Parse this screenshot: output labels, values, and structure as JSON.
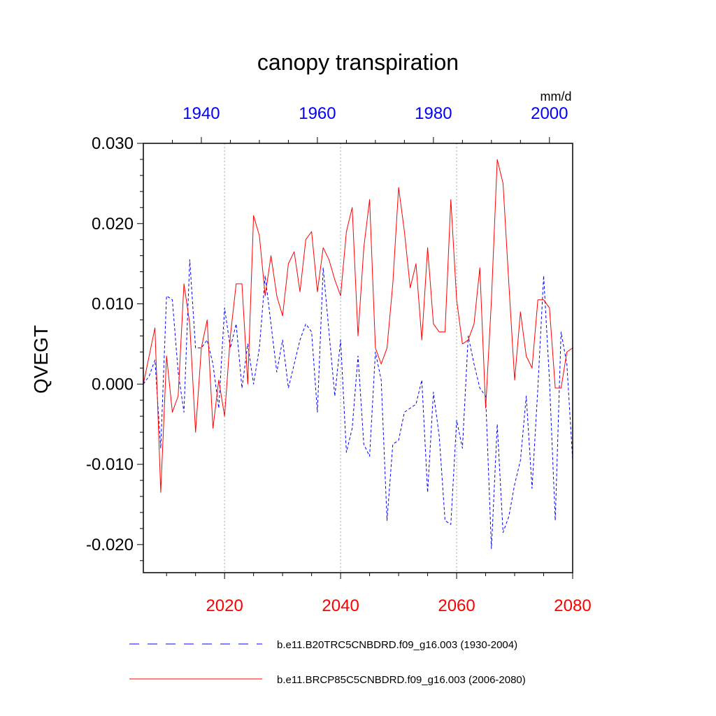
{
  "chart_data": {
    "type": "line",
    "title": "canopy transpiration",
    "ylabel": "QVEGT",
    "units": "mm/d",
    "ylim": [
      -0.0235,
      0.03
    ],
    "y_ticks": [
      "-0.020",
      "-0.010",
      "0.000",
      "0.010",
      "0.020",
      "0.030"
    ],
    "bottom_axis": {
      "range": [
        2006,
        2080
      ],
      "ticks": [
        "2020",
        "2040",
        "2060",
        "2080"
      ],
      "color": "#ff0000"
    },
    "top_axis": {
      "range": [
        1930,
        2004
      ],
      "ticks": [
        "1940",
        "1960",
        "1980",
        "2000"
      ],
      "color": "#0000ff"
    },
    "grid": "dotted vertical lines at major bottom-axis ticks",
    "legend_position": "bottom",
    "series": [
      {
        "name": "b.e11.B20TRC5CNBDRD.f09_g16.003 (1930-2004)",
        "axis": "top",
        "color": "#0000ff",
        "dash": "dashed",
        "x": [
          1930,
          1931,
          1932,
          1933,
          1934,
          1935,
          1936,
          1937,
          1938,
          1939,
          1940,
          1941,
          1942,
          1943,
          1944,
          1945,
          1946,
          1947,
          1948,
          1949,
          1950,
          1951,
          1952,
          1953,
          1954,
          1955,
          1956,
          1957,
          1958,
          1959,
          1960,
          1961,
          1962,
          1963,
          1964,
          1965,
          1966,
          1967,
          1968,
          1969,
          1970,
          1971,
          1972,
          1973,
          1974,
          1975,
          1976,
          1977,
          1978,
          1979,
          1980,
          1981,
          1982,
          1983,
          1984,
          1985,
          1986,
          1987,
          1988,
          1989,
          1990,
          1991,
          1992,
          1993,
          1994,
          1995,
          1996,
          1997,
          1998,
          1999,
          2000,
          2001,
          2002,
          2003,
          2004
        ],
        "values": [
          0.0,
          0.001,
          0.003,
          -0.008,
          0.011,
          0.0105,
          0.0015,
          -0.0035,
          0.0155,
          0.0045,
          0.0045,
          0.0055,
          0.0025,
          -0.003,
          0.0095,
          0.0045,
          0.0075,
          -0.0005,
          0.005,
          0.0,
          0.0045,
          0.0135,
          0.0075,
          0.0015,
          0.0055,
          -0.0005,
          0.0025,
          0.0055,
          0.0075,
          0.0065,
          -0.0035,
          0.0145,
          0.0065,
          -0.0015,
          0.0055,
          -0.0085,
          -0.0055,
          0.0035,
          -0.0075,
          -0.009,
          0.004,
          0.0005,
          -0.017,
          -0.0075,
          -0.007,
          -0.0035,
          -0.003,
          -0.0025,
          0.0005,
          -0.0135,
          -0.001,
          -0.0065,
          -0.017,
          -0.0175,
          -0.0045,
          -0.008,
          0.006,
          0.0025,
          -0.0005,
          -0.0015,
          -0.0205,
          -0.005,
          -0.0185,
          -0.0165,
          -0.0125,
          -0.0095,
          -0.0015,
          -0.013,
          -0.0005,
          0.0135,
          0.0005,
          -0.017,
          0.0065,
          0.0025,
          -0.0095
        ]
      },
      {
        "name": "b.e11.BRCP85C5CNBDRD.f09_g16.003 (2006-2080)",
        "axis": "bottom",
        "color": "#ff0000",
        "dash": "solid",
        "x": [
          2006,
          2007,
          2008,
          2009,
          2010,
          2011,
          2012,
          2013,
          2014,
          2015,
          2016,
          2017,
          2018,
          2019,
          2020,
          2021,
          2022,
          2023,
          2024,
          2025,
          2026,
          2027,
          2028,
          2029,
          2030,
          2031,
          2032,
          2033,
          2034,
          2035,
          2036,
          2037,
          2038,
          2039,
          2040,
          2041,
          2042,
          2043,
          2044,
          2045,
          2046,
          2047,
          2048,
          2049,
          2050,
          2051,
          2052,
          2053,
          2054,
          2055,
          2056,
          2057,
          2058,
          2059,
          2060,
          2061,
          2062,
          2063,
          2064,
          2065,
          2066,
          2067,
          2068,
          2069,
          2070,
          2071,
          2072,
          2073,
          2074,
          2075,
          2076,
          2077,
          2078,
          2079,
          2080
        ],
        "values": [
          0.0,
          0.0035,
          0.007,
          -0.0135,
          0.0035,
          -0.0035,
          -0.0015,
          0.0125,
          0.0075,
          -0.006,
          0.0045,
          0.008,
          -0.0055,
          0.0005,
          -0.004,
          0.006,
          0.0125,
          0.0125,
          0.0,
          0.021,
          0.0185,
          0.011,
          0.016,
          0.011,
          0.0085,
          0.015,
          0.0165,
          0.0115,
          0.018,
          0.019,
          0.0115,
          0.017,
          0.0155,
          0.013,
          0.011,
          0.019,
          0.022,
          0.006,
          0.017,
          0.023,
          0.0045,
          0.0025,
          0.0045,
          0.0125,
          0.0245,
          0.019,
          0.012,
          0.015,
          0.0055,
          0.017,
          0.0075,
          0.0065,
          0.0065,
          0.023,
          0.0105,
          0.005,
          0.0055,
          0.0075,
          0.0145,
          -0.003,
          0.0105,
          0.028,
          0.025,
          0.0125,
          0.0005,
          0.009,
          0.0035,
          0.002,
          0.0105,
          0.0105,
          0.0095,
          -0.0005,
          -0.0005,
          0.004,
          0.0045
        ]
      }
    ]
  },
  "legend": {
    "blue_label": "b.e11.B20TRC5CNBDRD.f09_g16.003 (1930-2004)",
    "red_label": "b.e11.BRCP85C5CNBDRD.f09_g16.003 (2006-2080)"
  }
}
